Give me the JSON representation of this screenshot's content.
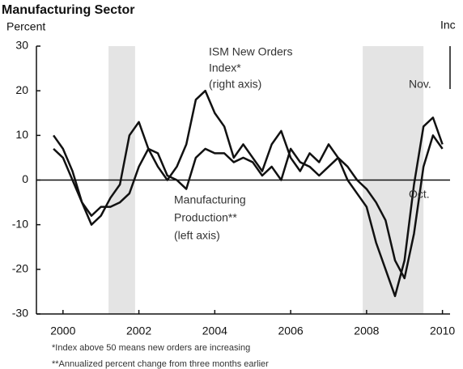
{
  "chart_data": {
    "type": "line",
    "title": "Manufacturing Sector",
    "ylabel": "Percent",
    "y2label": "Inc",
    "xlim": [
      1999.3,
      2010.2
    ],
    "xticks": [
      2000,
      2002,
      2004,
      2006,
      2008,
      2010
    ],
    "ylim": [
      -30,
      30
    ],
    "yticks": [
      -30,
      -20,
      -10,
      0,
      10,
      20,
      30
    ],
    "y2lim": [
      20,
      80
    ],
    "recessions": [
      [
        2001.2,
        2001.9
      ],
      [
        2007.9,
        2009.5
      ]
    ],
    "x": [
      1999.75,
      2000.0,
      2000.25,
      2000.5,
      2000.75,
      2001.0,
      2001.25,
      2001.5,
      2001.75,
      2002.0,
      2002.25,
      2002.5,
      2002.75,
      2003.0,
      2003.25,
      2003.5,
      2003.75,
      2004.0,
      2004.25,
      2004.5,
      2004.75,
      2005.0,
      2005.25,
      2005.5,
      2005.75,
      2006.0,
      2006.25,
      2006.5,
      2006.75,
      2007.0,
      2007.25,
      2007.5,
      2007.75,
      2008.0,
      2008.25,
      2008.5,
      2008.75,
      2009.0,
      2009.25,
      2009.5,
      2009.75,
      2010.0
    ],
    "series": [
      {
        "name": "ISM New Orders Index",
        "color": "#111111",
        "axis": "y2",
        "values": [
          60,
          57,
          52,
          45,
          40,
          42,
          46,
          49,
          60,
          63,
          57,
          53,
          50,
          53,
          58,
          68,
          70,
          65,
          62,
          55,
          58,
          55,
          52,
          58,
          61,
          55,
          52,
          56,
          54,
          58,
          55,
          50,
          47,
          44,
          36,
          30,
          24,
          32,
          49,
          62,
          64,
          58
        ]
      },
      {
        "name": "Manufacturing Production",
        "color": "#111111",
        "values": [
          7,
          5,
          0,
          -5,
          -8,
          -6,
          -6,
          -5,
          -3,
          3,
          7,
          6,
          1,
          0,
          -2,
          5,
          7,
          6,
          6,
          4,
          5,
          4,
          1,
          3,
          0,
          7,
          4,
          3,
          1,
          3,
          5,
          3,
          0,
          -2,
          -5,
          -9,
          -18,
          -22,
          -12,
          3,
          10,
          7
        ]
      }
    ],
    "annotations": [
      "ISM New Orders",
      "Index*",
      "(right axis)",
      "Manufacturing",
      "Production**",
      "(left axis)",
      "Nov.",
      "Oct."
    ],
    "footnotes": [
      "*Index above 50 means new orders are increasing",
      "**Annualized percent change from three months earlier"
    ]
  }
}
